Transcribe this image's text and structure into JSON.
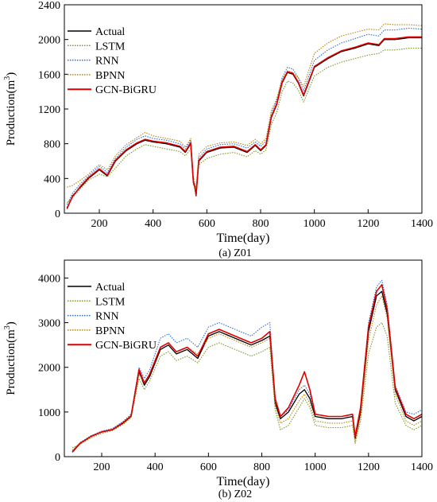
{
  "chart_data": [
    {
      "type": "line",
      "caption": "(a) Z01",
      "xlabel": "Time(day)",
      "ylabel_main": "Production(m",
      "ylabel_sup": "3",
      "ylabel_tail": ")",
      "xlim": [
        70,
        1400
      ],
      "ylim": [
        0,
        2400
      ],
      "xticks": [
        200,
        400,
        600,
        800,
        1000,
        1200,
        1400
      ],
      "yticks": [
        0,
        400,
        800,
        1200,
        1600,
        2000,
        2400
      ],
      "legend_position": "top-left",
      "series": [
        {
          "name": "Actual",
          "color": "#000000",
          "style": "solid",
          "x": [
            80,
            100,
            130,
            160,
            200,
            230,
            260,
            300,
            340,
            370,
            400,
            450,
            500,
            520,
            540,
            550,
            555,
            560,
            570,
            600,
            650,
            700,
            750,
            780,
            800,
            820,
            840,
            860,
            880,
            900,
            920,
            940,
            960,
            1000,
            1050,
            1100,
            1150,
            1200,
            1240,
            1260,
            1300,
            1350,
            1400
          ],
          "y": [
            50,
            200,
            300,
            400,
            500,
            430,
            600,
            720,
            800,
            840,
            820,
            800,
            760,
            700,
            800,
            350,
            300,
            200,
            600,
            700,
            750,
            760,
            700,
            780,
            720,
            780,
            1100,
            1250,
            1500,
            1620,
            1600,
            1500,
            1350,
            1680,
            1780,
            1860,
            1900,
            1950,
            1930,
            2000,
            2000,
            2020,
            2020
          ]
        },
        {
          "name": "LSTM",
          "color": "#7a9a2a",
          "style": "dotted",
          "x": [
            80,
            100,
            130,
            160,
            200,
            230,
            260,
            300,
            340,
            370,
            400,
            450,
            500,
            520,
            540,
            550,
            555,
            560,
            570,
            600,
            650,
            700,
            750,
            780,
            800,
            820,
            840,
            860,
            880,
            900,
            920,
            940,
            960,
            1000,
            1050,
            1100,
            1150,
            1200,
            1240,
            1260,
            1300,
            1350,
            1400
          ],
          "y": [
            120,
            180,
            280,
            380,
            450,
            420,
            520,
            660,
            740,
            790,
            770,
            740,
            710,
            660,
            740,
            330,
            290,
            220,
            560,
            630,
            680,
            700,
            650,
            720,
            680,
            730,
            1020,
            1160,
            1400,
            1520,
            1500,
            1420,
            1280,
            1580,
            1680,
            1740,
            1780,
            1820,
            1840,
            1880,
            1880,
            1900,
            1900
          ]
        },
        {
          "name": "RNN",
          "color": "#2a6ee0",
          "style": "dotted",
          "x": [
            80,
            100,
            130,
            160,
            200,
            230,
            260,
            300,
            340,
            370,
            400,
            450,
            500,
            520,
            540,
            550,
            555,
            560,
            570,
            600,
            650,
            700,
            750,
            780,
            800,
            820,
            840,
            860,
            880,
            900,
            920,
            940,
            960,
            1000,
            1050,
            1100,
            1150,
            1200,
            1240,
            1260,
            1300,
            1350,
            1400
          ],
          "y": [
            100,
            230,
            340,
            430,
            540,
            470,
            630,
            760,
            850,
            890,
            860,
            840,
            800,
            740,
            840,
            380,
            320,
            250,
            640,
            740,
            790,
            800,
            750,
            820,
            770,
            830,
            1150,
            1300,
            1560,
            1680,
            1660,
            1560,
            1410,
            1760,
            1880,
            1960,
            2010,
            2060,
            2040,
            2110,
            2110,
            2130,
            2120
          ]
        },
        {
          "name": "BPNN",
          "color": "#b8860b",
          "style": "dotted",
          "x": [
            80,
            100,
            130,
            160,
            200,
            230,
            260,
            300,
            340,
            370,
            400,
            450,
            500,
            520,
            540,
            550,
            555,
            560,
            570,
            600,
            650,
            700,
            750,
            780,
            800,
            820,
            840,
            860,
            880,
            900,
            920,
            940,
            960,
            1000,
            1050,
            1100,
            1150,
            1200,
            1240,
            1260,
            1300,
            1350,
            1400
          ],
          "y": [
            300,
            320,
            380,
            450,
            560,
            500,
            660,
            790,
            870,
            930,
            890,
            860,
            830,
            760,
            860,
            420,
            360,
            280,
            680,
            770,
            810,
            820,
            780,
            850,
            800,
            860,
            1180,
            1320,
            1540,
            1640,
            1620,
            1560,
            1460,
            1840,
            1960,
            2040,
            2080,
            2120,
            2110,
            2180,
            2170,
            2170,
            2160
          ]
        },
        {
          "name": "GCN-BiGRU",
          "color": "#e00000",
          "style": "solid",
          "x": [
            80,
            100,
            130,
            160,
            200,
            230,
            260,
            300,
            340,
            370,
            400,
            450,
            500,
            520,
            540,
            550,
            555,
            560,
            570,
            600,
            650,
            700,
            750,
            780,
            800,
            820,
            840,
            860,
            880,
            900,
            920,
            940,
            960,
            1000,
            1050,
            1100,
            1150,
            1200,
            1240,
            1260,
            1300,
            1350,
            1400
          ],
          "y": [
            60,
            190,
            310,
            410,
            510,
            440,
            610,
            730,
            810,
            850,
            830,
            810,
            770,
            710,
            810,
            360,
            310,
            210,
            610,
            710,
            760,
            770,
            710,
            790,
            730,
            790,
            1110,
            1260,
            1510,
            1630,
            1610,
            1510,
            1360,
            1690,
            1790,
            1870,
            1910,
            1960,
            1940,
            2010,
            2010,
            2030,
            2030
          ]
        }
      ]
    },
    {
      "type": "line",
      "caption": "(b) Z02",
      "xlabel": "Time(day)",
      "ylabel_main": "Production(m",
      "ylabel_sup": "3",
      "ylabel_tail": ")",
      "xlim": [
        60,
        1400
      ],
      "ylim": [
        0,
        4400
      ],
      "xticks": [
        200,
        400,
        600,
        800,
        1000,
        1200,
        1400
      ],
      "yticks": [
        0,
        1000,
        2000,
        3000,
        4000
      ],
      "legend_position": "top-left",
      "series": [
        {
          "name": "Actual",
          "color": "#000000",
          "style": "solid",
          "x": [
            90,
            120,
            160,
            200,
            240,
            280,
            310,
            340,
            360,
            380,
            420,
            450,
            480,
            520,
            560,
            600,
            640,
            680,
            720,
            760,
            800,
            830,
            850,
            870,
            900,
            940,
            960,
            980,
            1000,
            1050,
            1100,
            1140,
            1150,
            1170,
            1200,
            1230,
            1250,
            1270,
            1300,
            1340,
            1370,
            1400
          ],
          "y": [
            100,
            300,
            450,
            550,
            600,
            750,
            900,
            1900,
            1600,
            1800,
            2400,
            2500,
            2300,
            2400,
            2200,
            2700,
            2800,
            2700,
            2600,
            2500,
            2600,
            2700,
            1200,
            850,
            1000,
            1400,
            1500,
            1300,
            900,
            850,
            850,
            900,
            400,
            1000,
            2800,
            3600,
            3700,
            3200,
            1500,
            900,
            800,
            900
          ]
        },
        {
          "name": "LSTM",
          "color": "#7a9a2a",
          "style": "dotted",
          "x": [
            90,
            120,
            160,
            200,
            240,
            280,
            310,
            340,
            360,
            380,
            420,
            450,
            480,
            520,
            560,
            600,
            640,
            680,
            720,
            760,
            800,
            830,
            850,
            870,
            900,
            940,
            960,
            980,
            1000,
            1050,
            1100,
            1140,
            1150,
            1170,
            1200,
            1230,
            1250,
            1270,
            1300,
            1340,
            1370,
            1400
          ],
          "y": [
            200,
            280,
            420,
            520,
            580,
            720,
            870,
            1750,
            1500,
            1700,
            2250,
            2350,
            2150,
            2250,
            2100,
            2450,
            2550,
            2450,
            2350,
            2250,
            2350,
            2450,
            1050,
            600,
            700,
            1100,
            1300,
            1100,
            700,
            650,
            650,
            700,
            300,
            800,
            2300,
            2900,
            3000,
            2700,
            1200,
            700,
            600,
            700
          ]
        },
        {
          "name": "RNN",
          "color": "#2a6ee0",
          "style": "dotted",
          "x": [
            90,
            120,
            160,
            200,
            240,
            280,
            310,
            340,
            360,
            380,
            420,
            450,
            480,
            520,
            560,
            600,
            640,
            680,
            720,
            760,
            800,
            830,
            850,
            870,
            900,
            940,
            960,
            980,
            1000,
            1050,
            1100,
            1140,
            1150,
            1170,
            1200,
            1230,
            1250,
            1270,
            1300,
            1340,
            1370,
            1400
          ],
          "y": [
            120,
            320,
            470,
            570,
            630,
            790,
            950,
            2000,
            1750,
            1950,
            2650,
            2750,
            2550,
            2650,
            2450,
            2900,
            3000,
            2900,
            2800,
            2700,
            2900,
            3000,
            1300,
            900,
            1050,
            1500,
            1600,
            1400,
            950,
            900,
            900,
            950,
            450,
            1050,
            3000,
            3800,
            3950,
            3400,
            1600,
            1000,
            950,
            1050
          ]
        },
        {
          "name": "BPNN",
          "color": "#b8860b",
          "style": "dotted",
          "x": [
            90,
            120,
            160,
            200,
            240,
            280,
            310,
            340,
            360,
            380,
            420,
            450,
            480,
            520,
            560,
            600,
            640,
            680,
            720,
            760,
            800,
            830,
            850,
            870,
            900,
            940,
            960,
            980,
            1000,
            1050,
            1100,
            1140,
            1150,
            1170,
            1200,
            1230,
            1250,
            1270,
            1300,
            1340,
            1370,
            1400
          ],
          "y": [
            150,
            310,
            460,
            560,
            610,
            770,
            920,
            1850,
            1650,
            1850,
            2450,
            2550,
            2350,
            2450,
            2300,
            2650,
            2750,
            2650,
            2550,
            2450,
            2550,
            2650,
            1150,
            750,
            850,
            1250,
            1400,
            1200,
            800,
            750,
            750,
            800,
            350,
            900,
            2600,
            3400,
            3600,
            3100,
            1400,
            800,
            700,
            800
          ]
        },
        {
          "name": "GCN-BiGRU",
          "color": "#e00000",
          "style": "solid",
          "x": [
            90,
            120,
            160,
            200,
            240,
            280,
            310,
            340,
            360,
            380,
            420,
            450,
            480,
            520,
            560,
            600,
            640,
            680,
            720,
            760,
            800,
            830,
            850,
            870,
            900,
            940,
            960,
            980,
            1000,
            1050,
            1100,
            1140,
            1150,
            1170,
            1200,
            1230,
            1250,
            1270,
            1300,
            1340,
            1370,
            1400
          ],
          "y": [
            110,
            305,
            455,
            555,
            605,
            760,
            910,
            1950,
            1650,
            1850,
            2450,
            2550,
            2350,
            2450,
            2250,
            2750,
            2850,
            2750,
            2650,
            2550,
            2650,
            2800,
            1300,
            900,
            1100,
            1600,
            1900,
            1500,
            950,
            900,
            900,
            950,
            450,
            1100,
            2900,
            3700,
            3850,
            3300,
            1550,
            950,
            850,
            950
          ]
        }
      ]
    }
  ]
}
